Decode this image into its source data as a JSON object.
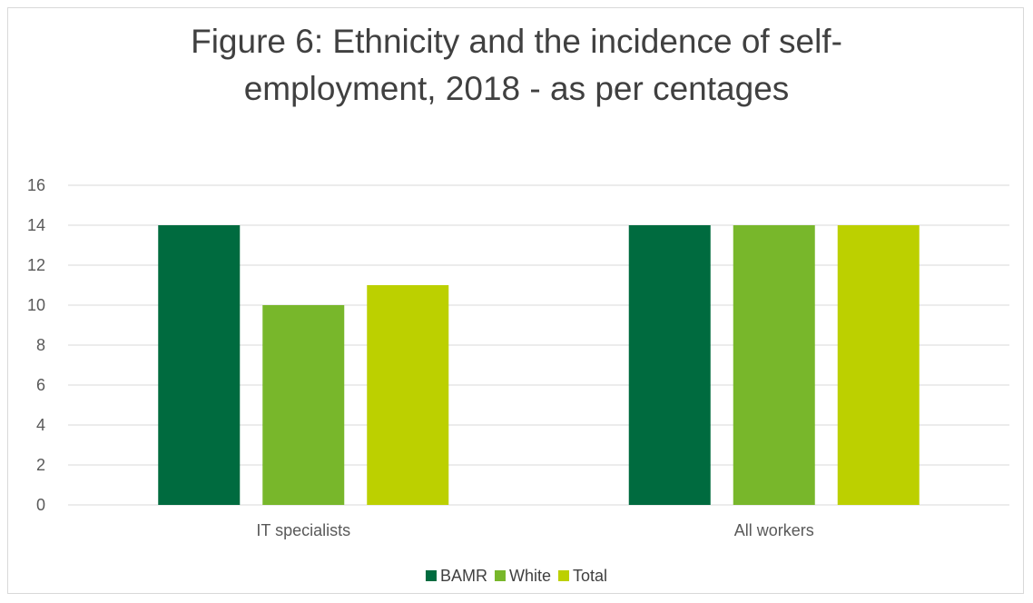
{
  "chart_data": {
    "type": "bar",
    "title": "Figure 6: Ethnicity and the incidence of self-\nemployment, 2018 - as per centages",
    "categories": [
      "IT specialists",
      "All workers"
    ],
    "series": [
      {
        "name": "BAMR",
        "values": [
          14,
          14
        ],
        "color": "#006B3F"
      },
      {
        "name": "White",
        "values": [
          10,
          14
        ],
        "color": "#78B72B"
      },
      {
        "name": "Total",
        "values": [
          11,
          14
        ],
        "color": "#BCD000"
      }
    ],
    "ylim": [
      0,
      16
    ],
    "yticks": [
      "0",
      "2",
      "4",
      "6",
      "8",
      "10",
      "12",
      "14",
      "16"
    ],
    "grid": true,
    "legend_position": "bottom",
    "gridline_color": "#d9d9d9"
  }
}
